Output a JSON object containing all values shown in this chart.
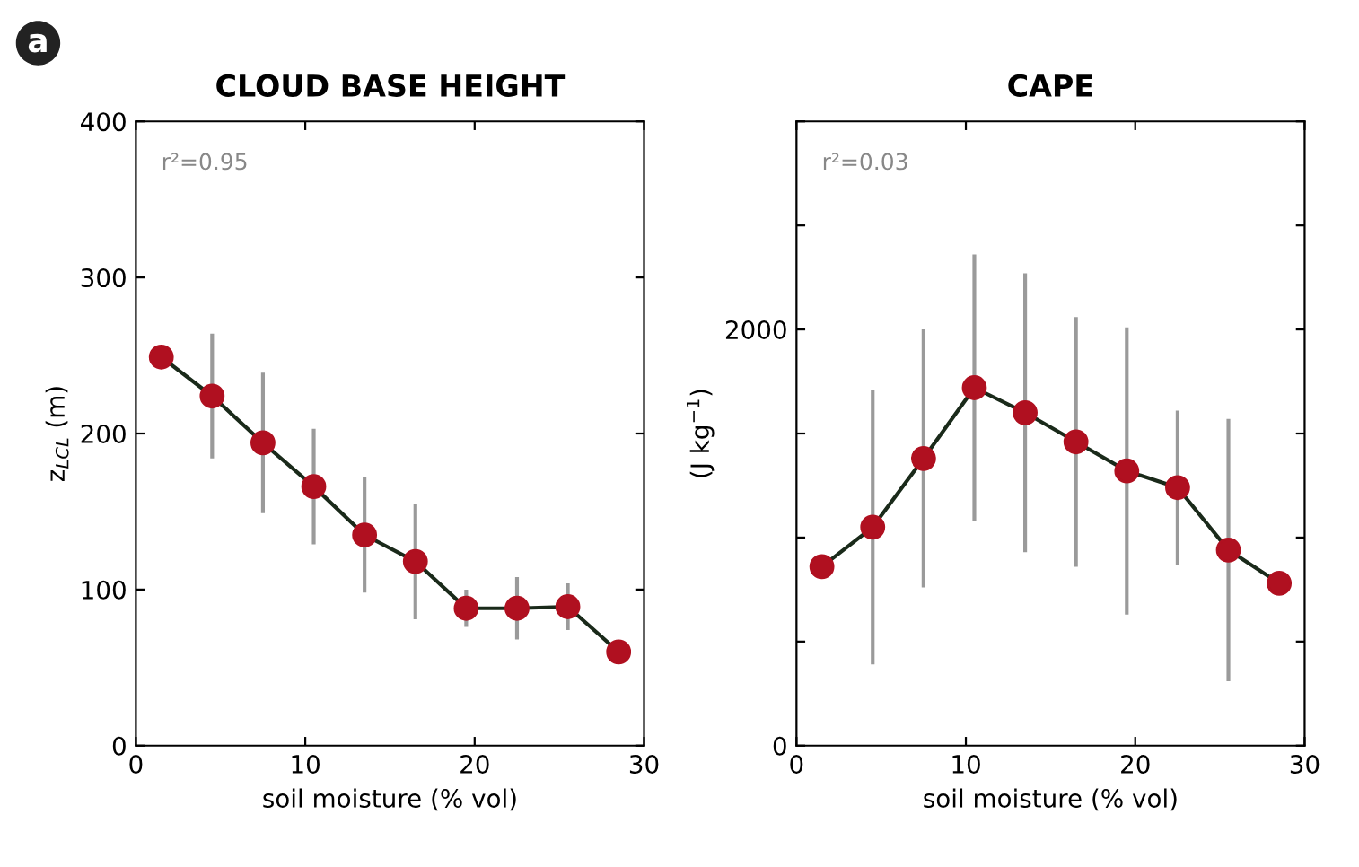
{
  "chart_data": [
    {
      "type": "line",
      "title": "CLOUD BASE HEIGHT",
      "xlabel": "soil moisture (% vol)",
      "ylabel": "z$_{LCL}$ (m)",
      "annotations": [
        "a",
        "r²=0.95"
      ],
      "x": [
        1.5,
        4.5,
        7.5,
        10.5,
        13.5,
        16.5,
        19.5,
        22.5,
        25.5,
        28.5
      ],
      "series": [
        {
          "color": "#b01020",
          "values": [
            249,
            224,
            194,
            166,
            135,
            118,
            88,
            88,
            89,
            60
          ],
          "errors": [
            null,
            40,
            45,
            37,
            37,
            37,
            12,
            20,
            15,
            null
          ]
        }
      ],
      "xlim": [
        0,
        30
      ],
      "xticks": [
        0,
        10,
        20,
        30
      ],
      "ylim": [
        0,
        400
      ],
      "yticks": [
        0,
        100,
        200,
        300,
        400
      ],
      "marker": "circle",
      "line_style": "solid",
      "grid": false,
      "legend": false
    },
    {
      "type": "line",
      "title": "CAPE",
      "xlabel": "soil moisture (% vol)",
      "ylabel": "(J kg$^{−1}$)",
      "annotations": [
        "r²=0.03"
      ],
      "x": [
        1.5,
        4.5,
        7.5,
        10.5,
        13.5,
        16.5,
        19.5,
        22.5,
        25.5,
        28.5
      ],
      "series": [
        {
          "color": "#b01020",
          "values": [
            860,
            1050,
            1380,
            1720,
            1600,
            1460,
            1320,
            1240,
            940,
            780
          ],
          "errors": [
            null,
            660,
            620,
            640,
            670,
            600,
            690,
            370,
            630,
            null
          ]
        }
      ],
      "xlim": [
        0,
        30
      ],
      "xticks": [
        0,
        10,
        20,
        30
      ],
      "ylim": [
        0,
        3000
      ],
      "yticks": [
        0,
        {
          "value": 500,
          "label": null
        },
        {
          "value": 1000,
          "label": null
        },
        {
          "value": 1500,
          "label": null
        },
        2000,
        {
          "value": 2500,
          "label": null
        },
        {
          "value": 3000,
          "label": null
        }
      ],
      "marker": "circle",
      "line_style": "solid",
      "grid": false,
      "legend": false
    }
  ]
}
